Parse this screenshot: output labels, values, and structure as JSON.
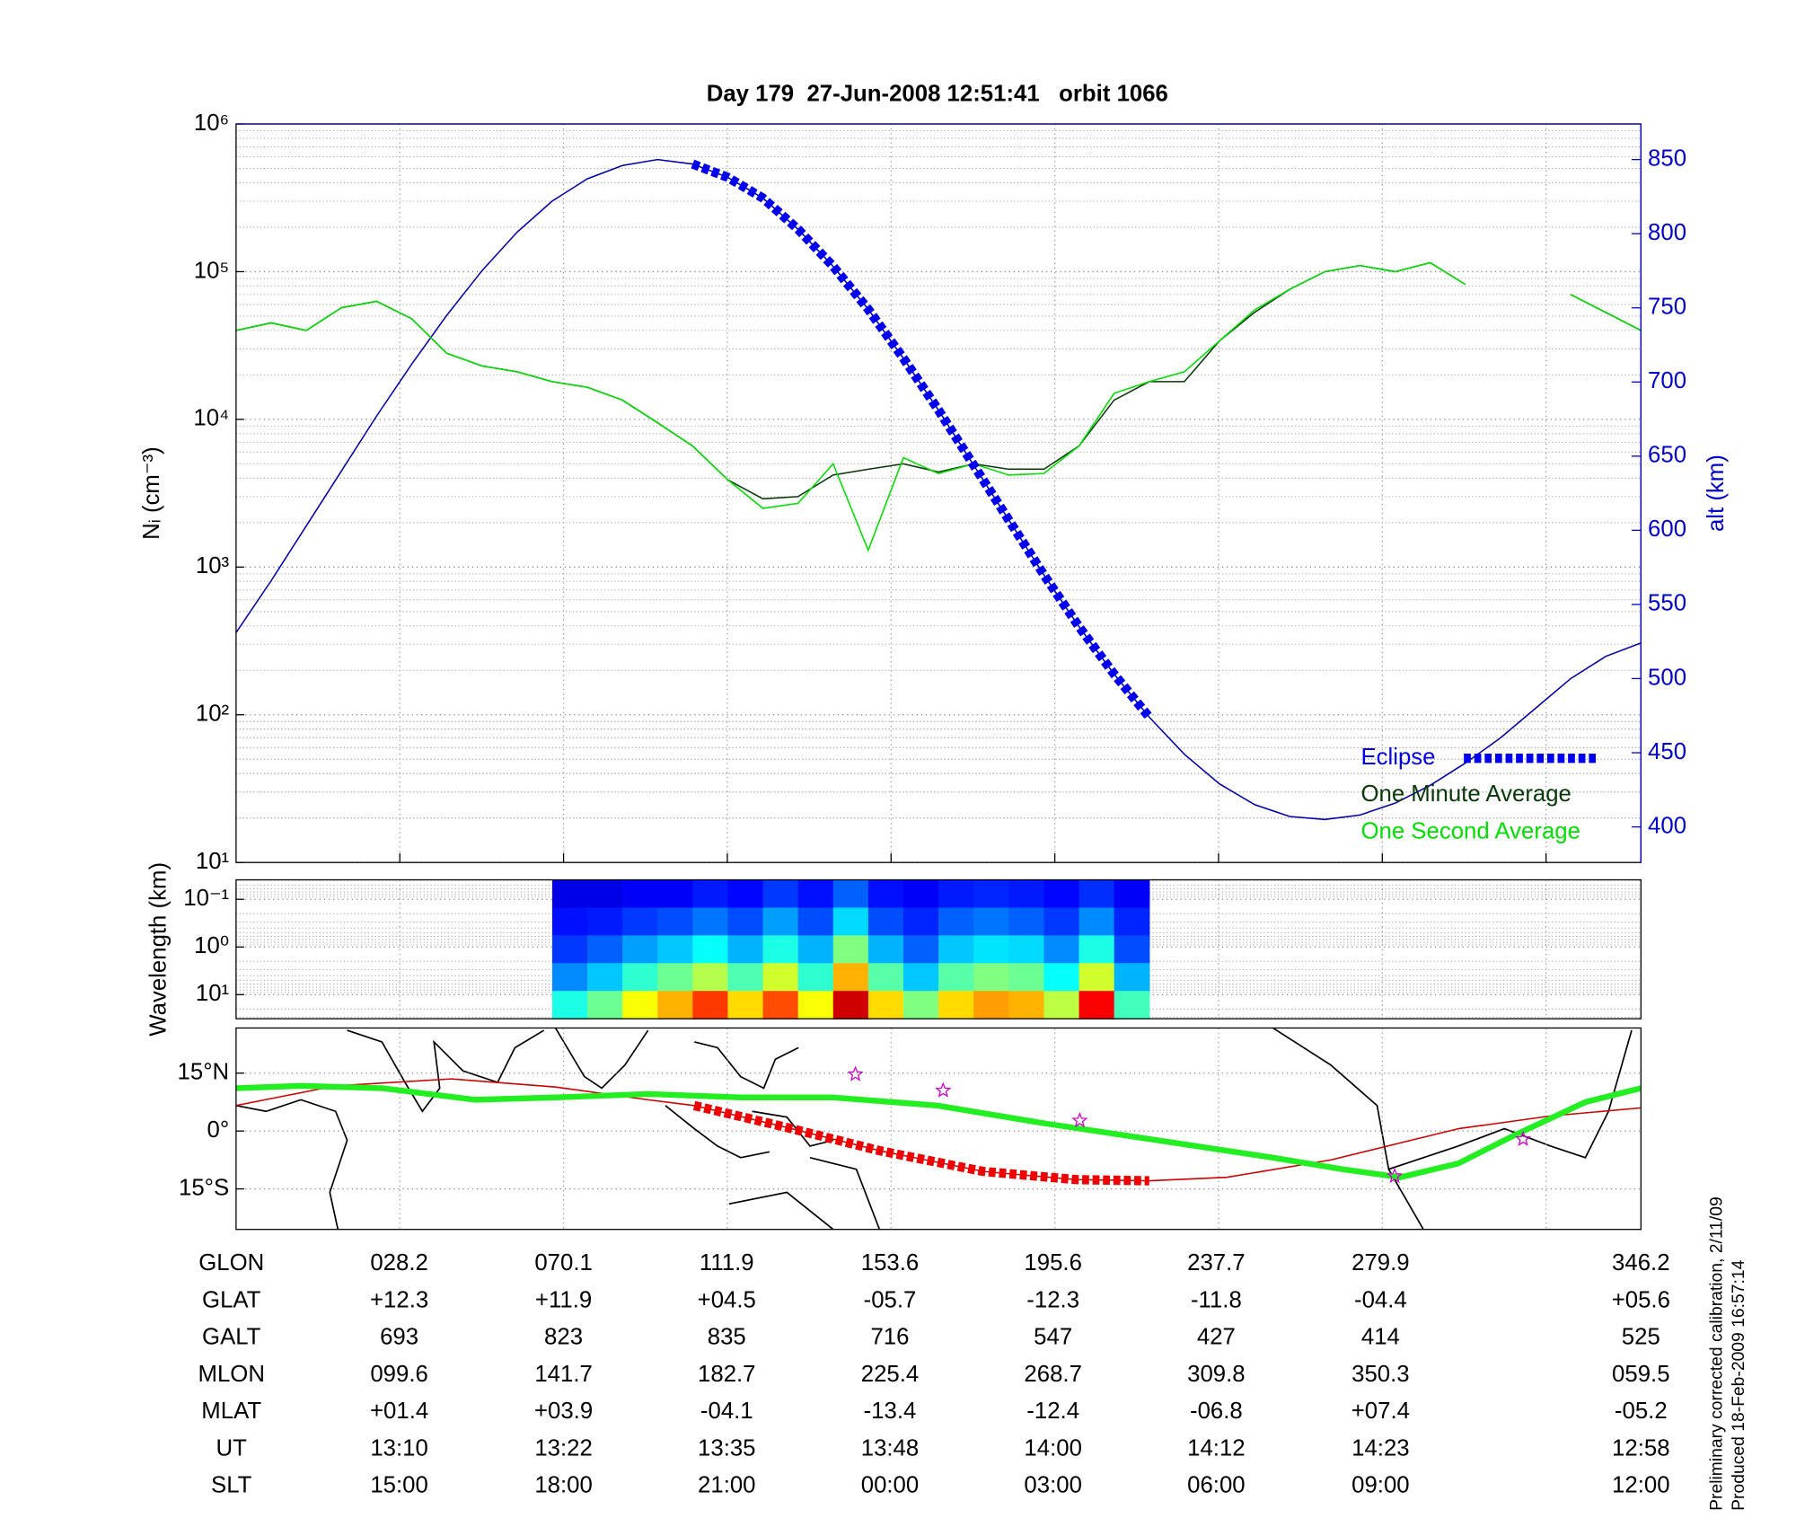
{
  "chart_data": [
    {
      "type": "line",
      "title": "Day 179  27-Jun-2008 12:51:41   orbit 1066",
      "ylabel": "Nᵢ (cm⁻³)",
      "y2label": "alt (km)",
      "log_y": true,
      "grid": true,
      "legend": "lower right",
      "ylim": [
        10,
        1000000
      ],
      "yticks": [
        {
          "value": 10,
          "label": "10¹"
        },
        {
          "value": 100,
          "label": "10²"
        },
        {
          "value": 1000,
          "label": "10³"
        },
        {
          "value": 10000,
          "label": "10⁴"
        },
        {
          "value": 100000,
          "label": "10⁵"
        },
        {
          "value": 1000000,
          "label": "10⁶"
        }
      ],
      "y2lim": [
        376,
        874
      ],
      "y2ticks": [
        400,
        450,
        500,
        550,
        600,
        650,
        700,
        750,
        800,
        850
      ],
      "y2color": "#0000cc",
      "series": [
        {
          "color": "#0000aa",
          "axis": "y2",
          "style": "thin",
          "values": [
            531,
            566,
            603,
            640,
            677,
            712,
            745,
            775,
            801,
            822,
            837,
            846,
            850,
            847,
            838,
            824,
            803,
            778,
            749,
            716,
            681,
            644,
            607,
            570,
            535,
            503,
            474,
            449,
            429,
            415,
            407,
            405,
            408,
            416,
            428,
            443,
            460,
            480,
            500,
            515,
            524
          ]
        },
        {
          "name": "Eclipse",
          "color": "#0000ee",
          "axis": "y2",
          "style": "dotted-thick",
          "values": [
            null,
            null,
            null,
            null,
            null,
            null,
            null,
            null,
            null,
            null,
            null,
            null,
            null,
            847,
            838,
            824,
            803,
            778,
            749,
            716,
            681,
            644,
            607,
            570,
            535,
            503,
            474,
            null,
            null,
            null,
            null,
            null,
            null,
            null,
            null,
            null,
            null,
            null,
            null,
            null,
            null
          ]
        },
        {
          "name": "One Minute Average",
          "color": "#083808",
          "style": "thin",
          "values": [
            40000,
            45000,
            40000,
            57000,
            63000,
            48000,
            28000,
            23000,
            21000,
            18000,
            16500,
            13500,
            9500,
            6600,
            3900,
            2900,
            3000,
            4200,
            4600,
            5000,
            4400,
            5000,
            4600,
            4600,
            6600,
            13500,
            18000,
            18000,
            34000,
            53000,
            76000,
            100000,
            110000,
            100000,
            115000,
            82000,
            null,
            null,
            70000,
            53000,
            40000
          ]
        },
        {
          "name": "One Second Average",
          "color": "#00dd00",
          "style": "thin",
          "values": [
            40000,
            45000,
            40000,
            57000,
            63000,
            48000,
            28000,
            23000,
            21000,
            18000,
            16500,
            13500,
            9500,
            6600,
            3900,
            2500,
            2700,
            5000,
            1300,
            5500,
            4300,
            5000,
            4200,
            4300,
            6600,
            15000,
            18000,
            21000,
            34000,
            55000,
            76000,
            100000,
            110000,
            100000,
            115000,
            82000,
            null,
            null,
            70000,
            53000,
            40000
          ]
        }
      ]
    },
    {
      "type": "heatmap",
      "ylabel": "Wavelength (km)",
      "log_y": true,
      "inverted": true,
      "ylim": [
        0.039,
        32
      ],
      "yticks": [
        {
          "value": 0.1,
          "label": "10⁻¹"
        },
        {
          "value": 1,
          "label": "10⁰"
        },
        {
          "value": 10,
          "label": "10¹"
        }
      ],
      "z": [
        [
          null,
          null,
          null,
          null,
          null,
          null,
          null,
          null,
          null,
          0.1,
          0.1,
          0.12,
          0.12,
          0.15,
          0.13,
          0.18,
          0.14,
          0.22,
          0.14,
          0.12,
          0.15,
          0.16,
          0.15,
          0.13,
          0.17,
          0.12,
          null,
          null,
          null,
          null,
          null,
          null,
          null,
          null,
          null,
          null,
          null,
          null,
          null,
          null
        ],
        [
          null,
          null,
          null,
          null,
          null,
          null,
          null,
          null,
          null,
          0.14,
          0.15,
          0.18,
          0.2,
          0.24,
          0.2,
          0.28,
          0.2,
          0.34,
          0.2,
          0.16,
          0.22,
          0.24,
          0.22,
          0.18,
          0.26,
          0.16,
          null,
          null,
          null,
          null,
          null,
          null,
          null,
          null,
          null,
          null,
          null,
          null,
          null,
          null
        ],
        [
          null,
          null,
          null,
          null,
          null,
          null,
          null,
          null,
          null,
          0.18,
          0.22,
          0.28,
          0.32,
          0.38,
          0.3,
          0.4,
          0.3,
          0.5,
          0.3,
          0.22,
          0.32,
          0.35,
          0.34,
          0.26,
          0.4,
          0.2,
          null,
          null,
          null,
          null,
          null,
          null,
          null,
          null,
          null,
          null,
          null,
          null,
          null,
          null
        ],
        [
          null,
          null,
          null,
          null,
          null,
          null,
          null,
          null,
          null,
          0.26,
          0.32,
          0.42,
          0.48,
          0.55,
          0.45,
          0.58,
          0.42,
          0.7,
          0.46,
          0.32,
          0.46,
          0.5,
          0.48,
          0.38,
          0.58,
          0.3,
          null,
          null,
          null,
          null,
          null,
          null,
          null,
          null,
          null,
          null,
          null,
          null,
          null,
          null
        ],
        [
          null,
          null,
          null,
          null,
          null,
          null,
          null,
          null,
          null,
          0.4,
          0.48,
          0.62,
          0.7,
          0.82,
          0.66,
          0.8,
          0.62,
          0.92,
          0.66,
          0.5,
          0.66,
          0.72,
          0.7,
          0.56,
          0.88,
          0.44,
          null,
          null,
          null,
          null,
          null,
          null,
          null,
          null,
          null,
          null,
          null,
          null,
          null,
          null
        ]
      ]
    },
    {
      "type": "map",
      "xlim": [
        -13.6,
        346.4
      ],
      "ylim": [
        -25.5,
        26.7
      ],
      "yticks": [
        {
          "value": 15,
          "label": "15°N"
        },
        {
          "value": 0,
          "label": "0°"
        },
        {
          "value": -15,
          "label": "15°S"
        }
      ],
      "series": [
        {
          "color": "#cc0000",
          "style": "thin",
          "x": [
            -13.6,
            11.9,
            41.6,
            68.3,
            92.0,
            103.8,
            127.6,
            151.3,
            178.0,
            201.7,
            220.4,
            240.3,
            266.9,
            299.6,
            323.3,
            346.4
          ],
          "values": [
            6.6,
            11.7,
            13.5,
            11.4,
            8.1,
            6.6,
            0.9,
            -5.1,
            -10.5,
            -12.6,
            -12.9,
            -12.0,
            -7.5,
            0.6,
            3.9,
            6.0
          ]
        },
        {
          "color": "#ee0000",
          "style": "dotted-thick",
          "x": [
            103.8,
            127.6,
            151.3,
            178.0,
            201.7,
            220.4
          ],
          "values": [
            6.6,
            0.9,
            -5.1,
            -10.5,
            -12.6,
            -12.9
          ]
        },
        {
          "color": "#22ee22",
          "style": "thick",
          "x": [
            -13.6,
            3.0,
            23.8,
            47.5,
            68.3,
            92.0,
            115.7,
            139.4,
            166.1,
            192.8,
            222.5,
            252.1,
            269.9,
            284.7,
            299.6,
            314.4,
            332.2,
            346.4
          ],
          "values": [
            11.1,
            11.7,
            11.1,
            8.1,
            8.7,
            9.6,
            8.7,
            8.7,
            6.6,
            2.1,
            -2.4,
            -6.9,
            -9.9,
            -12.0,
            -8.4,
            -0.9,
            7.5,
            11.1
          ]
        },
        {
          "color": "#cc00cc",
          "style": "star",
          "x": [
            145.1,
            167.6,
            202.6,
            283.3,
            316.2
          ],
          "values": [
            14.7,
            10.5,
            2.7,
            -11.7,
            -2.1
          ]
        }
      ]
    }
  ],
  "ephemeris": {
    "rows": [
      {
        "label": "GLON",
        "values": [
          "028.2",
          "070.1",
          "111.9",
          "153.6",
          "195.6",
          "237.7",
          "279.9",
          "346.2"
        ]
      },
      {
        "label": "GLAT",
        "values": [
          "+12.3",
          "+11.9",
          "+04.5",
          "-05.7",
          "-12.3",
          "-11.8",
          "-04.4",
          "+05.6"
        ]
      },
      {
        "label": "GALT",
        "values": [
          "693",
          "823",
          "835",
          "716",
          "547",
          "427",
          "414",
          "525"
        ]
      },
      {
        "label": "MLON",
        "values": [
          "099.6",
          "141.7",
          "182.7",
          "225.4",
          "268.7",
          "309.8",
          "350.3",
          "059.5"
        ]
      },
      {
        "label": "MLAT",
        "values": [
          "+01.4",
          "+03.9",
          "-04.1",
          "-13.4",
          "-12.4",
          "-06.8",
          "+07.4",
          "-05.2"
        ]
      },
      {
        "label": "UT",
        "values": [
          "13:10",
          "13:22",
          "13:35",
          "13:48",
          "14:00",
          "14:12",
          "14:23",
          "12:58"
        ]
      },
      {
        "label": "SLT",
        "values": [
          "15:00",
          "18:00",
          "21:00",
          "00:00",
          "03:00",
          "06:00",
          "09:00",
          "12:00"
        ]
      }
    ]
  },
  "footnotes": [
    "Preliminary corrected calibration, 2/11/09",
    "Produced 18-Feb-2009 16:57:14"
  ]
}
